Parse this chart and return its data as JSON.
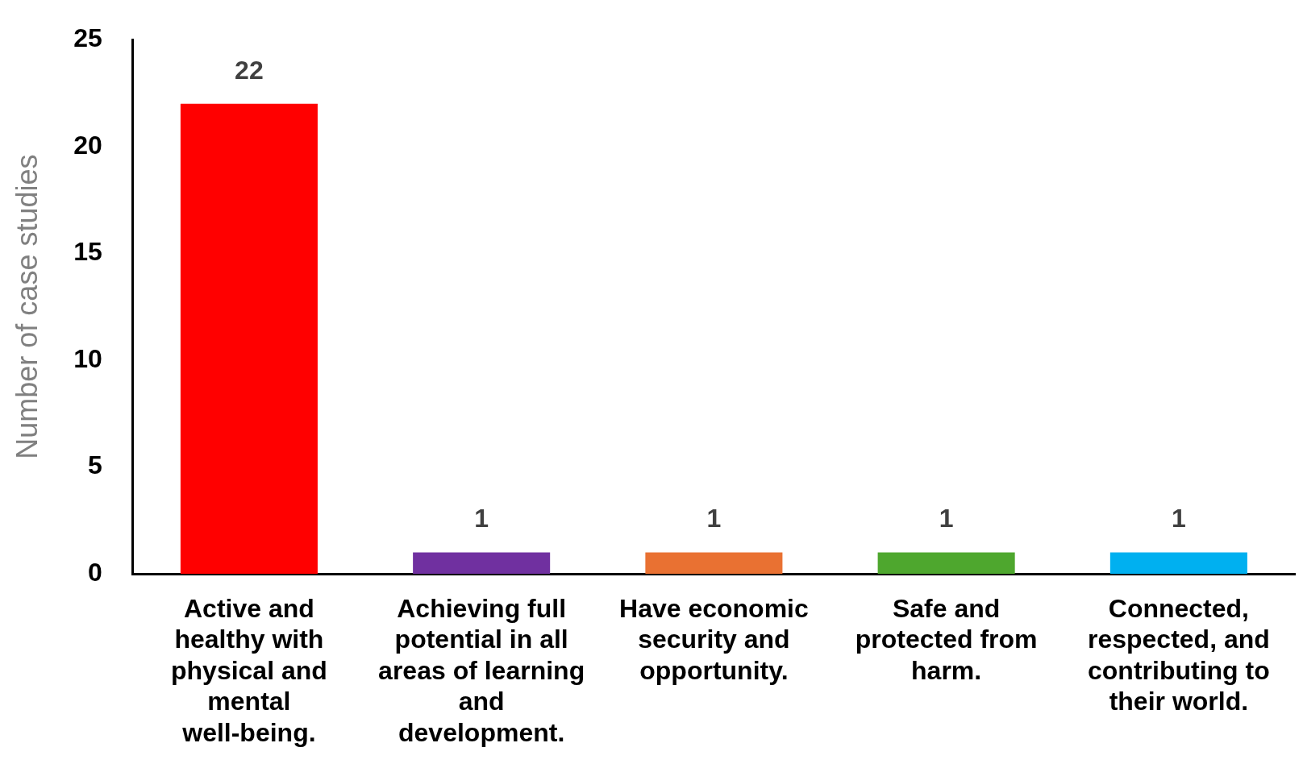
{
  "chart_data": {
    "type": "bar",
    "ylabel": "Number of case studies",
    "categories": [
      "Active and healthy with physical and mental well-being.",
      "Achieving full potential in all areas of learning and development.",
      "Have economic security and opportunity.",
      "Safe and protected from harm.",
      "Connected, respected, and contributing to their world."
    ],
    "values": [
      22,
      1,
      1,
      1,
      1
    ],
    "colors": [
      "#ff0000",
      "#7030a0",
      "#e97132",
      "#4ea72e",
      "#00b0f0"
    ],
    "ylim": [
      0,
      25
    ],
    "yticks": [
      0,
      5,
      10,
      15,
      20,
      25
    ],
    "data_labels": true
  }
}
